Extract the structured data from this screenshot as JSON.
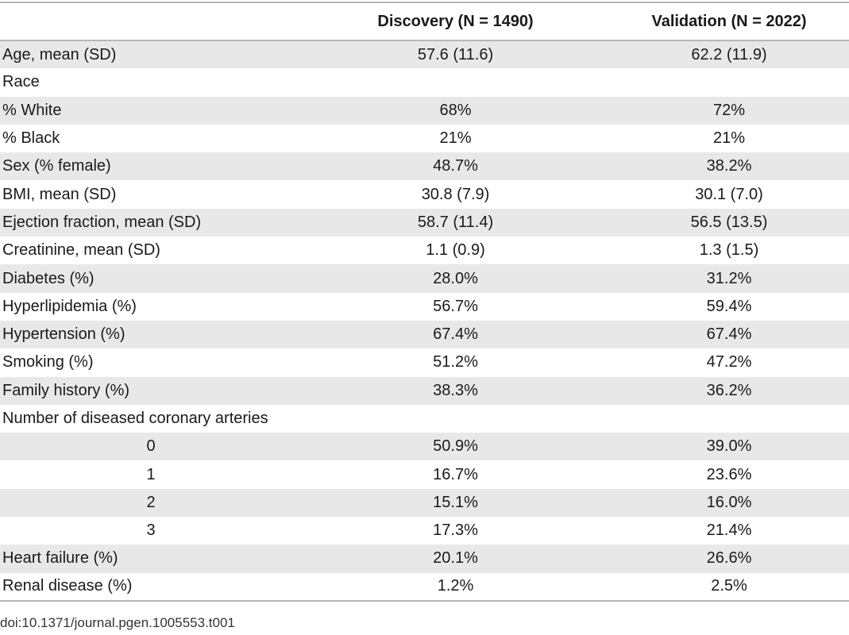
{
  "table": {
    "headers": [
      "",
      "Discovery (N = 1490)",
      "Validation (N = 2022)"
    ],
    "rows": [
      {
        "label": "Age, mean (SD)",
        "discovery": "57.6 (11.6)",
        "validation": "62.2 (11.9)"
      },
      {
        "label": "Race",
        "discovery": "",
        "validation": ""
      },
      {
        "label": "% White",
        "discovery": "68%",
        "validation": "72%"
      },
      {
        "label": "% Black",
        "discovery": "21%",
        "validation": "21%"
      },
      {
        "label": "Sex (% female)",
        "discovery": "48.7%",
        "validation": "38.2%"
      },
      {
        "label": "BMI, mean (SD)",
        "discovery": "30.8 (7.9)",
        "validation": "30.1 (7.0)"
      },
      {
        "label": "Ejection fraction, mean (SD)",
        "discovery": "58.7 (11.4)",
        "validation": "56.5 (13.5)"
      },
      {
        "label": "Creatinine, mean (SD)",
        "discovery": "1.1 (0.9)",
        "validation": "1.3 (1.5)"
      },
      {
        "label": "Diabetes (%)",
        "discovery": "28.0%",
        "validation": "31.2%"
      },
      {
        "label": "Hyperlipidemia (%)",
        "discovery": "56.7%",
        "validation": "59.4%"
      },
      {
        "label": "Hypertension (%)",
        "discovery": "67.4%",
        "validation": "67.4%"
      },
      {
        "label": "Smoking (%)",
        "discovery": "51.2%",
        "validation": "47.2%"
      },
      {
        "label": "Family history (%)",
        "discovery": "38.3%",
        "validation": "36.2%"
      },
      {
        "label": "Number of diseased coronary arteries",
        "discovery": "",
        "validation": ""
      },
      {
        "label": "0",
        "discovery": "50.9%",
        "validation": "39.0%",
        "sub": true
      },
      {
        "label": "1",
        "discovery": "16.7%",
        "validation": "23.6%",
        "sub": true
      },
      {
        "label": "2",
        "discovery": "15.1%",
        "validation": "16.0%",
        "sub": true
      },
      {
        "label": "3",
        "discovery": "17.3%",
        "validation": "21.4%",
        "sub": true
      },
      {
        "label": "Heart failure (%)",
        "discovery": "20.1%",
        "validation": "26.6%"
      },
      {
        "label": "Renal disease (%)",
        "discovery": "1.2%",
        "validation": "2.5%"
      }
    ]
  },
  "doi": "doi:10.1371/journal.pgen.1005553.t001"
}
